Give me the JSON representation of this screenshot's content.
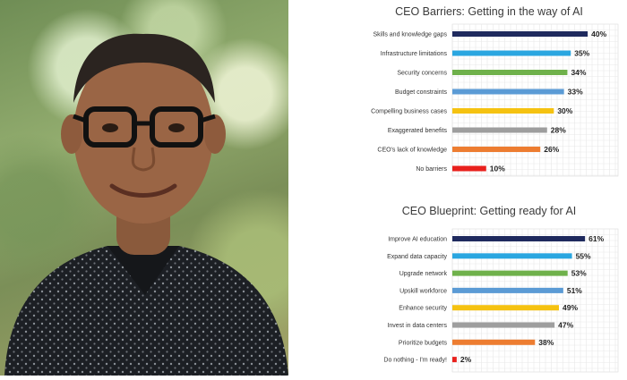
{
  "colors": {
    "navy": "#1f2a5e",
    "sky": "#2aa6e0",
    "green": "#6fb14b",
    "steel": "#5b9bd5",
    "gold": "#f5c211",
    "gray": "#9e9e9e",
    "orange": "#ed7d31",
    "red": "#e8201c"
  },
  "chart_data": [
    {
      "type": "bar",
      "orientation": "horizontal",
      "title": "CEO Barriers: Getting in the way of AI",
      "categories": [
        "Skills and knowledge gaps",
        "Infrastructure limitations",
        "Security concerns",
        "Budget constraints",
        "Compelling business cases",
        "Exaggerated benefits",
        "CEO's lack of knowledge",
        "No barriers"
      ],
      "values": [
        40,
        35,
        34,
        33,
        30,
        28,
        26,
        10
      ],
      "value_labels": [
        "40%",
        "35%",
        "34%",
        "33%",
        "30%",
        "28%",
        "26%",
        "10%"
      ],
      "bar_colors": [
        "#1f2a5e",
        "#2aa6e0",
        "#6fb14b",
        "#5b9bd5",
        "#f5c211",
        "#9e9e9e",
        "#ed7d31",
        "#e8201c"
      ],
      "xlim": [
        0,
        45
      ],
      "grid": true
    },
    {
      "type": "bar",
      "orientation": "horizontal",
      "title": "CEO Blueprint: Getting ready for AI",
      "categories": [
        "Improve AI education",
        "Expand data capacity",
        "Upgrade network",
        "Upskill workforce",
        "Enhance security",
        "Invest in data centers",
        "Prioritize budgets",
        "Do nothing - I'm ready!"
      ],
      "values": [
        61,
        55,
        53,
        51,
        49,
        47,
        38,
        2
      ],
      "value_labels": [
        "61%",
        "55%",
        "53%",
        "51%",
        "49%",
        "47%",
        "38%",
        "2%"
      ],
      "bar_colors": [
        "#1f2a5e",
        "#2aa6e0",
        "#6fb14b",
        "#5b9bd5",
        "#f5c211",
        "#9e9e9e",
        "#ed7d31",
        "#e8201c"
      ],
      "xlim": [
        0,
        70
      ],
      "grid": true
    }
  ]
}
